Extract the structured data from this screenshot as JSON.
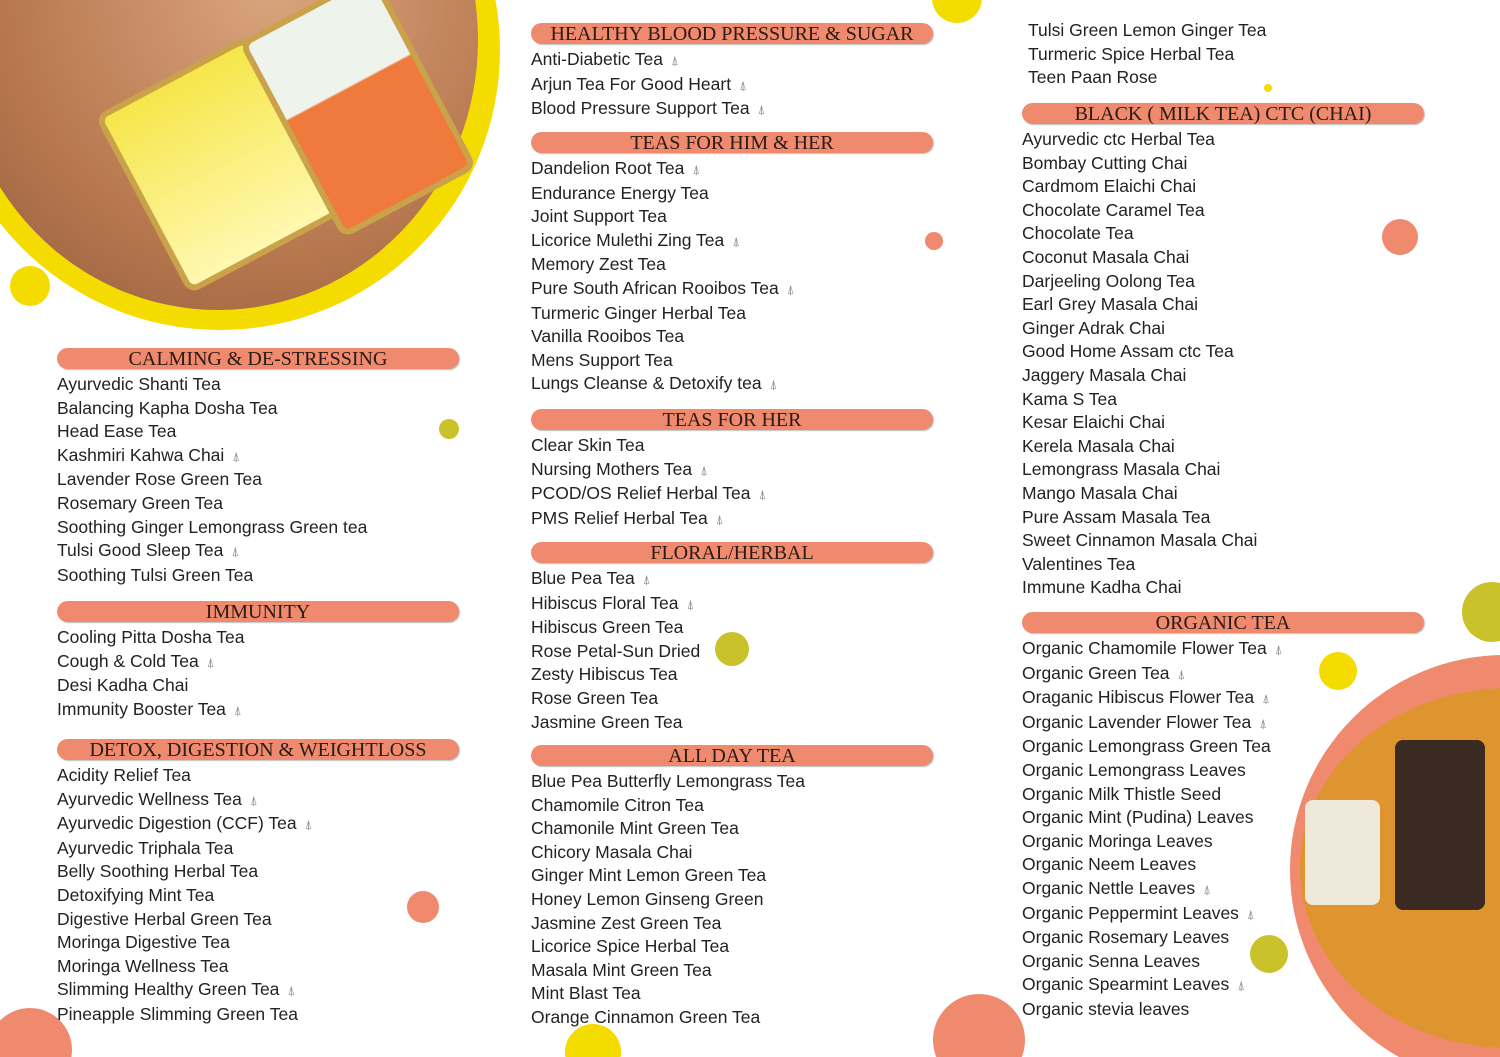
{
  "colors": {
    "header": "#f08a6e",
    "yellow": "#f5dc00",
    "olive": "#c9c22a",
    "salmon": "#f08a6e"
  },
  "icons": {
    "bag": "tea-bag-icon"
  },
  "columns": [
    {
      "sections": [
        {
          "title": "CALMING & DE-STRESSING",
          "items": [
            {
              "name": "Ayurvedic Shanti Tea"
            },
            {
              "name": "Balancing Kapha Dosha Tea"
            },
            {
              "name": "Head Ease Tea"
            },
            {
              "name": "Kashmiri Kahwa Chai",
              "bag": true
            },
            {
              "name": "Lavender Rose Green Tea"
            },
            {
              "name": "Rosemary Green Tea"
            },
            {
              "name": "Soothing Ginger Lemongrass Green tea"
            },
            {
              "name": "Tulsi Good Sleep Tea",
              "bag": true
            },
            {
              "name": "Soothing Tulsi Green Tea"
            }
          ]
        },
        {
          "title": "IMMUNITY",
          "items": [
            {
              "name": "Cooling Pitta Dosha Tea"
            },
            {
              "name": "Cough & Cold Tea",
              "bag": true
            },
            {
              "name": "Desi Kadha Chai"
            },
            {
              "name": "Immunity Booster Tea",
              "bag": true
            }
          ]
        },
        {
          "title": "DETOX, DIGESTION & WEIGHTLOSS",
          "items": [
            {
              "name": "Acidity Relief Tea"
            },
            {
              "name": "Ayurvedic Wellness Tea",
              "bag": true
            },
            {
              "name": "Ayurvedic Digestion (CCF) Tea",
              "bag": true
            },
            {
              "name": "Ayurvedic Triphala Tea"
            },
            {
              "name": "Belly Soothing Herbal Tea"
            },
            {
              "name": "Detoxifying Mint Tea"
            },
            {
              "name": "Digestive Herbal Green Tea"
            },
            {
              "name": "Moringa Digestive Tea"
            },
            {
              "name": "Moringa Wellness Tea"
            },
            {
              "name": "Slimming Healthy Green Tea",
              "bag": true
            },
            {
              "name": "Pineapple Slimming Green Tea"
            }
          ]
        }
      ]
    },
    {
      "sections": [
        {
          "title": "HEALTHY BLOOD PRESSURE & SUGAR",
          "items": [
            {
              "name": "Anti-Diabetic Tea",
              "bag": true
            },
            {
              "name": "Arjun Tea For Good Heart",
              "bag": true
            },
            {
              "name": "Blood Pressure Support Tea",
              "bag": true
            }
          ]
        },
        {
          "title": "TEAS FOR HIM & HER",
          "items": [
            {
              "name": "Dandelion Root Tea",
              "bag": true
            },
            {
              "name": "Endurance Energy Tea"
            },
            {
              "name": "Joint Support Tea"
            },
            {
              "name": "Licorice Mulethi Zing Tea",
              "bag": true
            },
            {
              "name": "Memory Zest Tea"
            },
            {
              "name": "Pure South African Rooibos Tea",
              "bag": true
            },
            {
              "name": "Turmeric Ginger Herbal Tea"
            },
            {
              "name": "Vanilla Rooibos Tea"
            },
            {
              "name": "Mens Support Tea"
            },
            {
              "name": "Lungs Cleanse & Detoxify tea",
              "bag": true
            }
          ]
        },
        {
          "title": "TEAS FOR HER",
          "items": [
            {
              "name": "Clear Skin Tea"
            },
            {
              "name": "Nursing Mothers Tea",
              "bag": true
            },
            {
              "name": "PCOD/OS Relief Herbal Tea",
              "bag": true
            },
            {
              "name": "PMS Relief Herbal Tea",
              "bag": true
            }
          ]
        },
        {
          "title": "FLORAL/HERBAL",
          "items": [
            {
              "name": "Blue Pea Tea",
              "bag": true
            },
            {
              "name": "Hibiscus Floral Tea",
              "bag": true
            },
            {
              "name": "Hibiscus Green Tea"
            },
            {
              "name": "Rose Petal-Sun Dried"
            },
            {
              "name": "Zesty Hibiscus Tea"
            },
            {
              "name": "Rose Green Tea"
            },
            {
              "name": "Jasmine Green Tea"
            }
          ]
        },
        {
          "title": "ALL DAY TEA",
          "items": [
            {
              "name": "Blue Pea Butterfly Lemongrass Tea"
            },
            {
              "name": "Chamomile Citron Tea"
            },
            {
              "name": "Chamonile Mint Green Tea"
            },
            {
              "name": "Chicory Masala Chai"
            },
            {
              "name": "Ginger Mint Lemon Green Tea"
            },
            {
              "name": "Honey Lemon Ginseng Green"
            },
            {
              "name": "Jasmine Zest Green Tea"
            },
            {
              "name": "Licorice Spice Herbal Tea"
            },
            {
              "name": "Masala Mint Green Tea"
            },
            {
              "name": "Mint Blast Tea"
            },
            {
              "name": "Orange Cinnamon Green Tea"
            }
          ]
        }
      ]
    },
    {
      "continued": [
        "Tulsi Green Lemon Ginger Tea",
        "Turmeric Spice Herbal Tea",
        "Teen Paan Rose"
      ],
      "sections": [
        {
          "title": "BLACK ( MILK TEA) CTC (CHAI)",
          "items": [
            {
              "name": "Ayurvedic ctc Herbal Tea"
            },
            {
              "name": "Bombay Cutting Chai"
            },
            {
              "name": "Cardmom Elaichi Chai"
            },
            {
              "name": "Chocolate Caramel Tea"
            },
            {
              "name": "Chocolate Tea"
            },
            {
              "name": "Coconut Masala Chai"
            },
            {
              "name": "Darjeeling Oolong Tea"
            },
            {
              "name": "Earl Grey Masala Chai"
            },
            {
              "name": "Ginger Adrak Chai"
            },
            {
              "name": "Good Home Assam ctc Tea"
            },
            {
              "name": "Jaggery Masala Chai"
            },
            {
              "name": "Kama S Tea"
            },
            {
              "name": "Kesar Elaichi Chai"
            },
            {
              "name": "Kerela Masala Chai"
            },
            {
              "name": "Lemongrass Masala Chai"
            },
            {
              "name": "Mango Masala Chai"
            },
            {
              "name": "Pure Assam Masala Tea"
            },
            {
              "name": "Sweet Cinnamon Masala Chai"
            },
            {
              "name": "Valentines Tea"
            },
            {
              "name": "Immune Kadha Chai"
            }
          ]
        },
        {
          "title": "ORGANIC TEA",
          "items": [
            {
              "name": "Organic Chamomile Flower Tea",
              "bag": true
            },
            {
              "name": "Organic Green Tea",
              "bag": true
            },
            {
              "name": "Oraganic Hibiscus Flower Tea",
              "bag": true
            },
            {
              "name": "Organic Lavender Flower Tea",
              "bag": true
            },
            {
              "name": "Organic Lemongrass  Green Tea"
            },
            {
              "name": "Organic Lemongrass Leaves"
            },
            {
              "name": "Organic Milk Thistle Seed"
            },
            {
              "name": "Organic Mint (Pudina) Leaves"
            },
            {
              "name": "Organic Moringa Leaves"
            },
            {
              "name": "Organic Neem Leaves"
            },
            {
              "name": "Organic Nettle Leaves",
              "bag": true
            },
            {
              "name": "Organic Peppermint Leaves",
              "bag": true
            },
            {
              "name": "Organic Rosemary Leaves"
            },
            {
              "name": "Organic Senna Leaves"
            },
            {
              "name": "Organic Spearmint Leaves",
              "bag": true
            },
            {
              "name": "Organic stevia leaves"
            }
          ]
        }
      ]
    }
  ]
}
